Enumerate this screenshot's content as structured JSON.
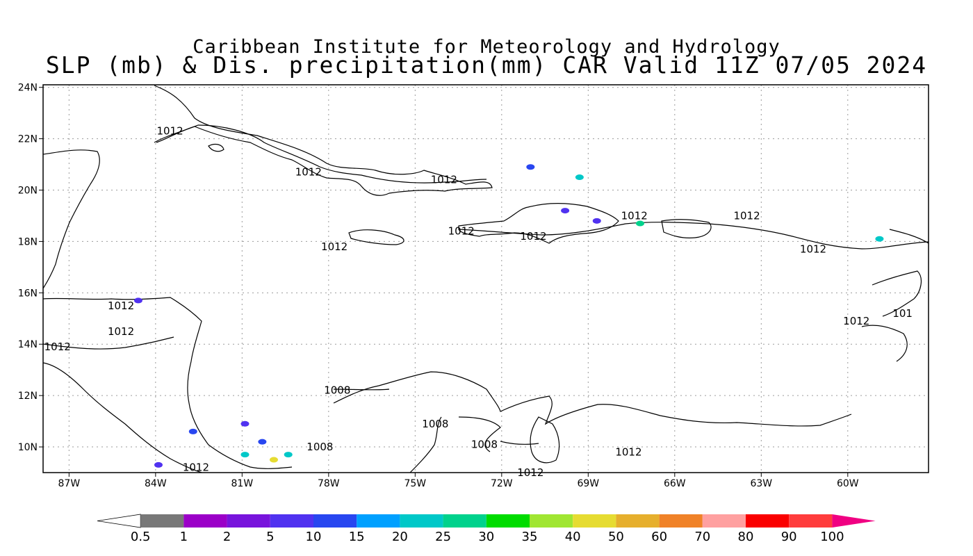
{
  "title_line1": "Caribbean Institute for Meteorology and Hydrology",
  "title_line2": "SLP (mb) & Dis. precipitation(mm) CAR Valid 11Z 07/05 2024",
  "map": {
    "lon_range": [
      -87.9,
      -57.2
    ],
    "lat_range": [
      9.0,
      24.1
    ],
    "grid": "dotted",
    "lat_ticks": [
      {
        "lat": 24,
        "label": "24N"
      },
      {
        "lat": 22,
        "label": "22N"
      },
      {
        "lat": 20,
        "label": "20N"
      },
      {
        "lat": 18,
        "label": "18N"
      },
      {
        "lat": 16,
        "label": "16N"
      },
      {
        "lat": 14,
        "label": "14N"
      },
      {
        "lat": 12,
        "label": "12N"
      },
      {
        "lat": 10,
        "label": "10N"
      }
    ],
    "lon_ticks": [
      {
        "lon": -87,
        "label": "87W"
      },
      {
        "lon": -84,
        "label": "84W"
      },
      {
        "lon": -81,
        "label": "81W"
      },
      {
        "lon": -78,
        "label": "78W"
      },
      {
        "lon": -75,
        "label": "75W"
      },
      {
        "lon": -72,
        "label": "72W"
      },
      {
        "lon": -69,
        "label": "69W"
      },
      {
        "lon": -66,
        "label": "66W"
      },
      {
        "lon": -63,
        "label": "63W"
      },
      {
        "lon": -60,
        "label": "60W"
      }
    ],
    "isobar_labels": [
      {
        "lon": -83.5,
        "lat": 22.3,
        "text": "1012"
      },
      {
        "lon": -78.7,
        "lat": 20.7,
        "text": "1012"
      },
      {
        "lon": -74.0,
        "lat": 20.4,
        "text": "1012"
      },
      {
        "lon": -67.4,
        "lat": 19.0,
        "text": "1012"
      },
      {
        "lon": -63.5,
        "lat": 19.0,
        "text": "1012"
      },
      {
        "lon": -73.4,
        "lat": 18.4,
        "text": "1012"
      },
      {
        "lon": -70.9,
        "lat": 18.2,
        "text": "1012"
      },
      {
        "lon": -77.8,
        "lat": 17.8,
        "text": "1012"
      },
      {
        "lon": -61.2,
        "lat": 17.7,
        "text": "1012"
      },
      {
        "lon": -85.2,
        "lat": 15.5,
        "text": "1012"
      },
      {
        "lon": -85.2,
        "lat": 14.5,
        "text": "1012"
      },
      {
        "lon": -87.4,
        "lat": 13.9,
        "text": "1012"
      },
      {
        "lon": -59.7,
        "lat": 14.9,
        "text": "1012"
      },
      {
        "lon": -58.1,
        "lat": 15.2,
        "text": "101"
      },
      {
        "lon": -77.7,
        "lat": 12.2,
        "text": "1008"
      },
      {
        "lon": -74.3,
        "lat": 10.9,
        "text": "1008"
      },
      {
        "lon": -78.3,
        "lat": 10.0,
        "text": "1008"
      },
      {
        "lon": -72.6,
        "lat": 10.1,
        "text": "1008"
      },
      {
        "lon": -67.6,
        "lat": 9.8,
        "text": "1012"
      },
      {
        "lon": -82.6,
        "lat": 9.2,
        "text": "1012"
      },
      {
        "lon": -71.0,
        "lat": 9.0,
        "text": "1012"
      }
    ]
  },
  "colorbar": {
    "colors": [
      "#ffffff",
      "#787878",
      "#9b00c8",
      "#7814dc",
      "#5032f0",
      "#2846f0",
      "#00a0ff",
      "#00c8c8",
      "#00d28c",
      "#00dc00",
      "#a0e632",
      "#e6dc32",
      "#e6af2d",
      "#f08228",
      "#ffa0a0",
      "#fa0000",
      "#ff3c3c",
      "#f00082"
    ],
    "labels": [
      "0.5",
      "1",
      "2",
      "5",
      "10",
      "15",
      "20",
      "25",
      "30",
      "35",
      "40",
      "50",
      "60",
      "70",
      "80",
      "90",
      "100"
    ]
  },
  "precip_cells": [
    {
      "lon": -84.6,
      "lat": 15.7,
      "color": "#5032f0"
    },
    {
      "lon": -80.9,
      "lat": 10.9,
      "color": "#5032f0"
    },
    {
      "lon": -80.3,
      "lat": 10.2,
      "color": "#2846f0"
    },
    {
      "lon": -80.9,
      "lat": 9.7,
      "color": "#00c8c8"
    },
    {
      "lon": -79.4,
      "lat": 9.7,
      "color": "#00c8c8"
    },
    {
      "lon": -82.7,
      "lat": 10.6,
      "color": "#2846f0"
    },
    {
      "lon": -83.9,
      "lat": 9.3,
      "color": "#5032f0"
    },
    {
      "lon": -79.9,
      "lat": 9.5,
      "color": "#e6dc32"
    },
    {
      "lon": -67.2,
      "lat": 18.7,
      "color": "#00d28c"
    },
    {
      "lon": -58.9,
      "lat": 18.1,
      "color": "#00c8c8"
    },
    {
      "lon": -69.3,
      "lat": 20.5,
      "color": "#00c8c8"
    },
    {
      "lon": -68.7,
      "lat": 18.8,
      "color": "#5032f0"
    },
    {
      "lon": -69.8,
      "lat": 19.2,
      "color": "#5032f0"
    },
    {
      "lon": -71.0,
      "lat": 20.9,
      "color": "#2846f0"
    }
  ]
}
